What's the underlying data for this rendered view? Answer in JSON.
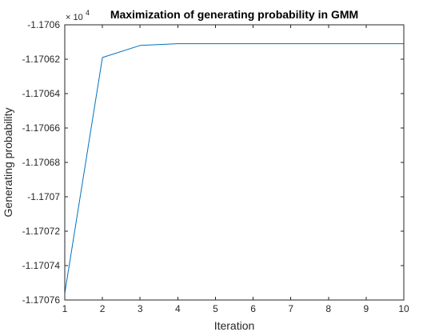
{
  "chart_data": {
    "type": "line",
    "title": "Maximization of generating probability in GMM",
    "xlabel": "Iteration",
    "ylabel": "Generating probability",
    "exponent_label": {
      "base": "× 10",
      "power": "4"
    },
    "x": [
      1,
      2,
      3,
      4,
      5,
      6,
      7,
      8,
      9,
      10
    ],
    "series": [
      {
        "values": [
          -1.170756,
          -1.170619,
          -1.170612,
          -1.170611,
          -1.170611,
          -1.170611,
          -1.170611,
          -1.170611,
          -1.170611,
          -1.170611
        ],
        "color": "#0072BD"
      }
    ],
    "xlim": [
      1,
      10
    ],
    "ylim": [
      -1.17076,
      -1.1706
    ],
    "xticks": [
      1,
      2,
      3,
      4,
      5,
      6,
      7,
      8,
      9,
      10
    ],
    "xtick_labels": [
      "1",
      "2",
      "3",
      "4",
      "5",
      "6",
      "7",
      "8",
      "9",
      "10"
    ],
    "yticks": [
      -1.17076,
      -1.17074,
      -1.17072,
      -1.1707,
      -1.17068,
      -1.17066,
      -1.17064,
      -1.17062,
      -1.1706
    ],
    "ytick_labels": [
      "-1.17076",
      "-1.17074",
      "-1.17072",
      "-1.1707",
      "-1.17068",
      "-1.17066",
      "-1.17064",
      "-1.17062",
      "-1.1706"
    ],
    "grid": false,
    "box": true
  }
}
